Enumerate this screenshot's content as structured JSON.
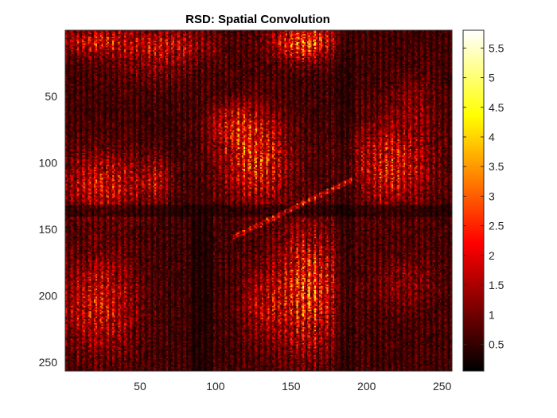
{
  "chart_data": {
    "type": "heatmap",
    "title": "RSD: Spatial Convolution",
    "xlabel": "",
    "ylabel": "",
    "xlim": [
      0.5,
      256.5
    ],
    "ylim": [
      0.5,
      256.5
    ],
    "y_direction": "reverse",
    "xticks": [
      50,
      100,
      150,
      200,
      250
    ],
    "yticks": [
      50,
      100,
      150,
      200,
      250
    ],
    "colormap": "hot",
    "clim": [
      0.05,
      5.8
    ],
    "colorbar": {
      "ticks": [
        0.5,
        1,
        1.5,
        2,
        2.5,
        3,
        3.5,
        4,
        4.5,
        5,
        5.5
      ],
      "tick_labels": [
        "0.5",
        "1",
        "1.5",
        "2",
        "2.5",
        "3",
        "3.5",
        "4",
        "4.5",
        "5",
        "5.5"
      ],
      "location": "right"
    },
    "grid": false,
    "matrix_size": [
      256,
      256
    ],
    "regions": [
      {
        "description": "bright top band",
        "x": 158,
        "y": 8,
        "peak": 4.3
      },
      {
        "description": "bright top-left patch",
        "x": 25,
        "y": 8,
        "peak": 3.2
      },
      {
        "description": "central bright streak",
        "x": 125,
        "y": 100,
        "peak": 3.8
      },
      {
        "description": "right bright band",
        "x": 218,
        "y": 100,
        "peak": 3.2
      },
      {
        "description": "left bright band",
        "x": 30,
        "y": 110,
        "peak": 3.0
      },
      {
        "description": "bottom bright band",
        "x": 155,
        "y": 200,
        "peak": 4.0
      },
      {
        "description": "bottom-left bright patch",
        "x": 25,
        "y": 205,
        "peak": 3.0
      }
    ]
  }
}
